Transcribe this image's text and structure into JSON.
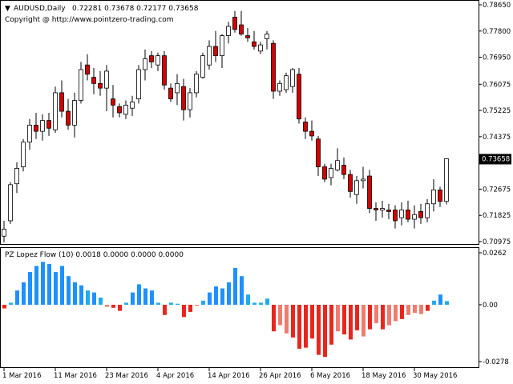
{
  "chart": {
    "symbol_header": "AUDUSD,Daily",
    "ohlc_line": "0.72281 0.73678 0.72177 0.73658",
    "copyright": "Copyright @ http://www.pointzero-trading.com",
    "current_price": "0.73658"
  },
  "indicator": {
    "label": "PZ Lopez Flow (10) 0.0018 0.0000 0.0000 0.0000"
  },
  "colors": {
    "bull_candle": "#ffffff",
    "bear_candle": "#d40000",
    "candle_outline": "#000000",
    "hist_strong_up": "#1e90ff",
    "hist_weak_up": "#20aaf0",
    "hist_strong_down": "#e8261e",
    "hist_weak_down": "#f07b6e"
  },
  "chart_data": [
    {
      "type": "candlestick",
      "title": "AUDUSD,Daily",
      "ylim": [
        0.70975,
        0.7865
      ],
      "y_ticks": [
        "0.78650",
        "0.77800",
        "0.76950",
        "0.76075",
        "0.75225",
        "0.74375",
        "0.72675",
        "0.71825",
        "0.70975"
      ],
      "x_ticks": [
        "1 Mar 2016",
        "11 Mar 2016",
        "23 Mar 2016",
        "4 Apr 2016",
        "14 Apr 2016",
        "26 Apr 2016",
        "6 May 2016",
        "18 May 2016",
        "30 May 2016"
      ],
      "x_tick_index": [
        0,
        8,
        16,
        24,
        32,
        40,
        48,
        56,
        64
      ],
      "candles": [
        {
          "o": 0.7115,
          "h": 0.7165,
          "l": 0.7095,
          "c": 0.7138
        },
        {
          "o": 0.7165,
          "h": 0.729,
          "l": 0.7155,
          "c": 0.7282
        },
        {
          "o": 0.7285,
          "h": 0.7355,
          "l": 0.7255,
          "c": 0.7335
        },
        {
          "o": 0.734,
          "h": 0.743,
          "l": 0.7325,
          "c": 0.742
        },
        {
          "o": 0.742,
          "h": 0.7495,
          "l": 0.7395,
          "c": 0.7475
        },
        {
          "o": 0.7475,
          "h": 0.7515,
          "l": 0.743,
          "c": 0.7455
        },
        {
          "o": 0.7455,
          "h": 0.751,
          "l": 0.7425,
          "c": 0.749
        },
        {
          "o": 0.749,
          "h": 0.7515,
          "l": 0.744,
          "c": 0.7465
        },
        {
          "o": 0.746,
          "h": 0.76,
          "l": 0.745,
          "c": 0.758
        },
        {
          "o": 0.758,
          "h": 0.762,
          "l": 0.75,
          "c": 0.752
        },
        {
          "o": 0.752,
          "h": 0.756,
          "l": 0.746,
          "c": 0.7475
        },
        {
          "o": 0.7475,
          "h": 0.758,
          "l": 0.7435,
          "c": 0.7555
        },
        {
          "o": 0.7555,
          "h": 0.768,
          "l": 0.7545,
          "c": 0.7655
        },
        {
          "o": 0.767,
          "h": 0.7705,
          "l": 0.762,
          "c": 0.764
        },
        {
          "o": 0.763,
          "h": 0.766,
          "l": 0.7575,
          "c": 0.761
        },
        {
          "o": 0.761,
          "h": 0.765,
          "l": 0.757,
          "c": 0.7595
        },
        {
          "o": 0.7595,
          "h": 0.767,
          "l": 0.752,
          "c": 0.765
        },
        {
          "o": 0.756,
          "h": 0.7605,
          "l": 0.75,
          "c": 0.754
        },
        {
          "o": 0.7535,
          "h": 0.7545,
          "l": 0.75,
          "c": 0.7515
        },
        {
          "o": 0.751,
          "h": 0.7555,
          "l": 0.7495,
          "c": 0.754
        },
        {
          "o": 0.753,
          "h": 0.757,
          "l": 0.7505,
          "c": 0.755
        },
        {
          "o": 0.756,
          "h": 0.767,
          "l": 0.7545,
          "c": 0.7655
        },
        {
          "o": 0.7655,
          "h": 0.772,
          "l": 0.762,
          "c": 0.769
        },
        {
          "o": 0.77,
          "h": 0.7715,
          "l": 0.766,
          "c": 0.768
        },
        {
          "o": 0.767,
          "h": 0.771,
          "l": 0.765,
          "c": 0.77
        },
        {
          "o": 0.77,
          "h": 0.7715,
          "l": 0.759,
          "c": 0.7605
        },
        {
          "o": 0.7595,
          "h": 0.761,
          "l": 0.755,
          "c": 0.756
        },
        {
          "o": 0.758,
          "h": 0.764,
          "l": 0.754,
          "c": 0.761
        },
        {
          "o": 0.76,
          "h": 0.7625,
          "l": 0.749,
          "c": 0.7525
        },
        {
          "o": 0.7525,
          "h": 0.7595,
          "l": 0.75,
          "c": 0.758
        },
        {
          "o": 0.758,
          "h": 0.765,
          "l": 0.7565,
          "c": 0.764
        },
        {
          "o": 0.763,
          "h": 0.771,
          "l": 0.7625,
          "c": 0.77
        },
        {
          "o": 0.767,
          "h": 0.775,
          "l": 0.7655,
          "c": 0.773
        },
        {
          "o": 0.773,
          "h": 0.778,
          "l": 0.768,
          "c": 0.77
        },
        {
          "o": 0.77,
          "h": 0.777,
          "l": 0.766,
          "c": 0.7765
        },
        {
          "o": 0.7765,
          "h": 0.781,
          "l": 0.774,
          "c": 0.7795
        },
        {
          "o": 0.7825,
          "h": 0.7845,
          "l": 0.7775,
          "c": 0.7785
        },
        {
          "o": 0.78,
          "h": 0.7845,
          "l": 0.7765,
          "c": 0.777
        },
        {
          "o": 0.7765,
          "h": 0.779,
          "l": 0.7745,
          "c": 0.7758
        },
        {
          "o": 0.7745,
          "h": 0.778,
          "l": 0.772,
          "c": 0.773
        },
        {
          "o": 0.7715,
          "h": 0.7745,
          "l": 0.7705,
          "c": 0.7735
        },
        {
          "o": 0.7755,
          "h": 0.778,
          "l": 0.772,
          "c": 0.777
        },
        {
          "o": 0.774,
          "h": 0.775,
          "l": 0.756,
          "c": 0.7585
        },
        {
          "o": 0.7585,
          "h": 0.762,
          "l": 0.757,
          "c": 0.761
        },
        {
          "o": 0.759,
          "h": 0.7645,
          "l": 0.758,
          "c": 0.7635
        },
        {
          "o": 0.76,
          "h": 0.766,
          "l": 0.758,
          "c": 0.7655
        },
        {
          "o": 0.764,
          "h": 0.766,
          "l": 0.748,
          "c": 0.7495
        },
        {
          "o": 0.7485,
          "h": 0.75,
          "l": 0.743,
          "c": 0.7455
        },
        {
          "o": 0.7455,
          "h": 0.749,
          "l": 0.7425,
          "c": 0.744
        },
        {
          "o": 0.743,
          "h": 0.744,
          "l": 0.731,
          "c": 0.734
        },
        {
          "o": 0.734,
          "h": 0.735,
          "l": 0.729,
          "c": 0.73
        },
        {
          "o": 0.7305,
          "h": 0.735,
          "l": 0.728,
          "c": 0.7335
        },
        {
          "o": 0.733,
          "h": 0.74,
          "l": 0.7325,
          "c": 0.736
        },
        {
          "o": 0.7345,
          "h": 0.737,
          "l": 0.73,
          "c": 0.7315
        },
        {
          "o": 0.7315,
          "h": 0.733,
          "l": 0.724,
          "c": 0.726
        },
        {
          "o": 0.725,
          "h": 0.731,
          "l": 0.722,
          "c": 0.7295
        },
        {
          "o": 0.7295,
          "h": 0.734,
          "l": 0.727,
          "c": 0.73
        },
        {
          "o": 0.731,
          "h": 0.733,
          "l": 0.719,
          "c": 0.7205
        },
        {
          "o": 0.7205,
          "h": 0.7225,
          "l": 0.7165,
          "c": 0.72
        },
        {
          "o": 0.72,
          "h": 0.723,
          "l": 0.7175,
          "c": 0.7205
        },
        {
          "o": 0.72,
          "h": 0.722,
          "l": 0.717,
          "c": 0.7195
        },
        {
          "o": 0.72,
          "h": 0.7215,
          "l": 0.714,
          "c": 0.7165
        },
        {
          "o": 0.7175,
          "h": 0.7225,
          "l": 0.715,
          "c": 0.72
        },
        {
          "o": 0.72,
          "h": 0.723,
          "l": 0.716,
          "c": 0.717
        },
        {
          "o": 0.717,
          "h": 0.7215,
          "l": 0.714,
          "c": 0.7185
        },
        {
          "o": 0.7195,
          "h": 0.722,
          "l": 0.7155,
          "c": 0.7175
        },
        {
          "o": 0.7175,
          "h": 0.7235,
          "l": 0.716,
          "c": 0.722
        },
        {
          "o": 0.722,
          "h": 0.73,
          "l": 0.7195,
          "c": 0.7265
        },
        {
          "o": 0.7265,
          "h": 0.7275,
          "l": 0.721,
          "c": 0.7228
        },
        {
          "o": 0.7228,
          "h": 0.7368,
          "l": 0.7218,
          "c": 0.7366
        }
      ]
    },
    {
      "type": "histogram",
      "title": "PZ Lopez Flow (10) 0.0018 0.0000 0.0000 0.0000",
      "ylim": [
        -0.0278,
        0.0262
      ],
      "y_ticks": [
        "0.0262",
        "0.00",
        "-0.0278"
      ],
      "zero_line": 0.0,
      "values": [
        -0.0018,
        0.001,
        0.007,
        0.011,
        0.016,
        0.019,
        0.021,
        0.02,
        0.016,
        0.019,
        0.014,
        0.011,
        0.0095,
        0.007,
        0.006,
        0.0035,
        -0.001,
        -0.0015,
        -0.003,
        0.001,
        0.006,
        0.01,
        0.008,
        0.007,
        0.001,
        -0.005,
        0.001,
        0.0005,
        -0.006,
        -0.0035,
        -0.0005,
        0.002,
        0.006,
        0.009,
        0.008,
        0.011,
        0.018,
        0.014,
        0.005,
        0.001,
        0.001,
        0.003,
        -0.013,
        -0.01,
        -0.014,
        -0.016,
        -0.0215,
        -0.021,
        -0.0165,
        -0.0245,
        -0.0255,
        -0.0195,
        -0.013,
        -0.0145,
        -0.017,
        -0.0125,
        -0.0155,
        -0.012,
        -0.009,
        -0.012,
        -0.01,
        -0.008,
        -0.007,
        -0.005,
        -0.004,
        -0.0045,
        -0.003,
        0.002,
        0.005,
        0.0018
      ],
      "strength": [
        1,
        0,
        1,
        1,
        1,
        1,
        1,
        1,
        1,
        1,
        1,
        1,
        1,
        0,
        1,
        0,
        0,
        1,
        1,
        0,
        1,
        1,
        1,
        1,
        0,
        1,
        0,
        0,
        1,
        1,
        0,
        0,
        1,
        1,
        1,
        1,
        1,
        1,
        0,
        0,
        0,
        0,
        1,
        0,
        0,
        1,
        1,
        1,
        1,
        1,
        1,
        1,
        0,
        1,
        1,
        1,
        0,
        1,
        0,
        1,
        0,
        0,
        1,
        0,
        0,
        0,
        1,
        0,
        1,
        0
      ]
    }
  ]
}
